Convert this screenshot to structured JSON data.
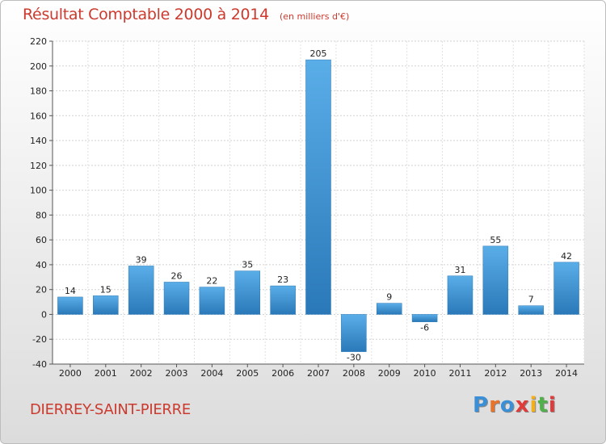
{
  "chart_data": {
    "type": "bar",
    "title": "Résultat Comptable 2000 à 2014",
    "unit": "(en milliers d'€)",
    "categories": [
      "2000",
      "2001",
      "2002",
      "2003",
      "2004",
      "2005",
      "2006",
      "2007",
      "2008",
      "2009",
      "2010",
      "2011",
      "2012",
      "2013",
      "2014"
    ],
    "values": [
      14,
      15,
      39,
      26,
      22,
      35,
      23,
      205,
      -30,
      9,
      -6,
      31,
      55,
      7,
      42
    ],
    "ylim": [
      -40,
      220
    ],
    "yticks": [
      -40,
      -20,
      0,
      20,
      40,
      60,
      80,
      100,
      120,
      140,
      160,
      180,
      200,
      220
    ],
    "xlabel": "",
    "ylabel": "",
    "grid": true,
    "legend": "none",
    "bar_color": "#3d94d6",
    "bar_color_light": "#5aaee8",
    "bar_color_dark": "#2a78b8"
  },
  "commune": "DIERREY-SAINT-PIERRE",
  "logo": {
    "letters": [
      "P",
      "r",
      "o",
      "x",
      "i",
      "t",
      "i"
    ],
    "colors": [
      "#3b8fd6",
      "#e8742a",
      "#3b8fd6",
      "#e03a3a",
      "#f2b01e",
      "#52b04a",
      "#e03a3a"
    ]
  }
}
